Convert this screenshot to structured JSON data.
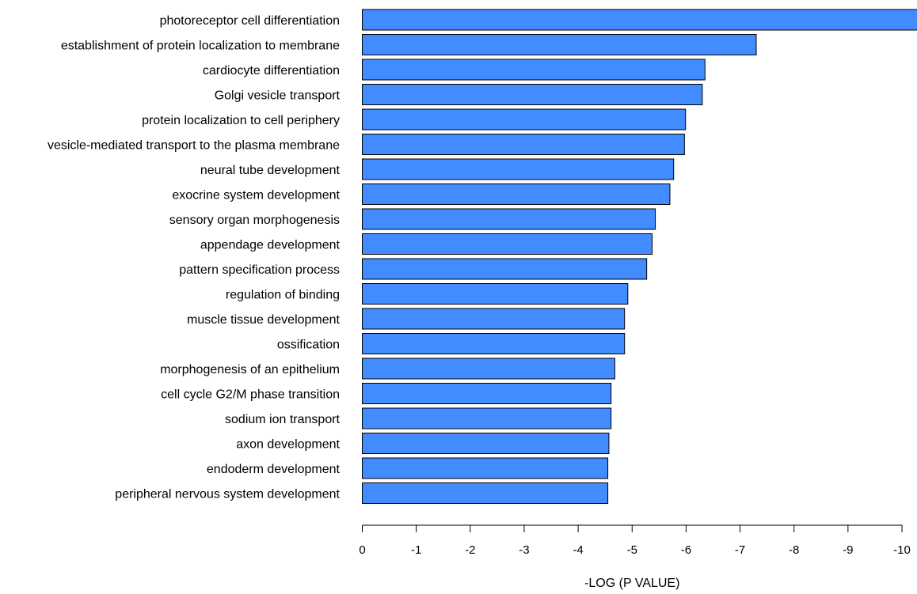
{
  "chart_data": {
    "type": "bar",
    "orientation": "horizontal",
    "title": "",
    "xlabel": "-LOG (P VALUE)",
    "ylabel": "",
    "xlim": [
      0,
      -10
    ],
    "xticks": [
      0,
      -1,
      -2,
      -3,
      -4,
      -5,
      -6,
      -7,
      -8,
      -9,
      -10
    ],
    "tick_labels": [
      "0",
      "-1",
      "-2",
      "-3",
      "-4",
      "-5",
      "-6",
      "-7",
      "-8",
      "-9",
      "-10"
    ],
    "categories": [
      "photoreceptor cell differentiation",
      "establishment of protein localization to membrane",
      "cardiocyte differentiation",
      "Golgi vesicle transport",
      "protein localization to cell periphery",
      "vesicle-mediated transport to the plasma membrane",
      "neural tube development",
      "exocrine system development",
      "sensory organ morphogenesis",
      "appendage development",
      "pattern specification process",
      "regulation of binding",
      "muscle tissue development",
      "ossification",
      "morphogenesis of an epithelium",
      "cell cycle G2/M phase transition",
      "sodium ion transport",
      "axon development",
      "endoderm development",
      "peripheral nervous system development"
    ],
    "values": [
      -10.3,
      -7.3,
      -6.35,
      -6.3,
      -5.99,
      -5.97,
      -5.77,
      -5.7,
      -5.43,
      -5.37,
      -5.27,
      -4.92,
      -4.86,
      -4.86,
      -4.68,
      -4.61,
      -4.61,
      -4.57,
      -4.55,
      -4.55
    ],
    "bar_color": "#428cff",
    "bar_edge_color": "#000000",
    "grid": false,
    "legend": "none"
  }
}
